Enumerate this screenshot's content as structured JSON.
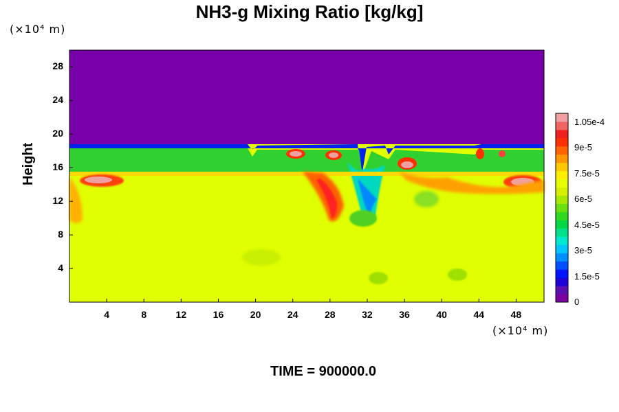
{
  "chart_data": {
    "type": "heatmap",
    "title": "NH3-g Mixing Ratio [kg/kg]",
    "xlabel": "",
    "ylabel": "Height",
    "x_unit_label": "(×10⁴ m)",
    "y_unit_label": "(×10⁴ m)",
    "xlim": [
      0,
      51
    ],
    "ylim": [
      0,
      30
    ],
    "x_ticks": [
      "4",
      "8",
      "12",
      "16",
      "20",
      "24",
      "28",
      "32",
      "36",
      "40",
      "44",
      "48"
    ],
    "y_ticks": [
      "4",
      "8",
      "12",
      "16",
      "20",
      "24",
      "28"
    ],
    "colorbar": {
      "min": 0,
      "max": 0.00011,
      "labels": [
        "0",
        "1.5e-5",
        "3e-5",
        "4.5e-5",
        "6e-5",
        "7.5e-5",
        "9e-5",
        "1.05e-4"
      ],
      "colors": [
        "#7b00a0",
        "#5a0fb0",
        "#1e00d8",
        "#0014ff",
        "#0050ff",
        "#0090ff",
        "#00c8ff",
        "#00e8d0",
        "#00e08c",
        "#00d846",
        "#30d820",
        "#6ae010",
        "#a8e800",
        "#d8f000",
        "#e8ff00",
        "#fff000",
        "#ffc800",
        "#ff9800",
        "#ff6400",
        "#ff3000",
        "#f02020",
        "#f06464",
        "#f0a0a0"
      ]
    },
    "regions_description_free": true,
    "background_value": 7.6e-05,
    "upper_value": 0.0
  },
  "footer": {
    "time_label": "TIME = 900000.0"
  }
}
